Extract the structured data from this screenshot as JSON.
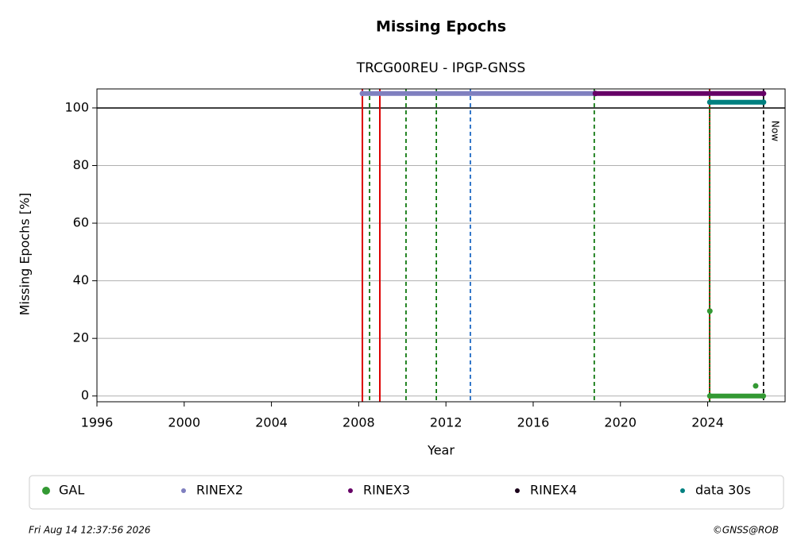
{
  "chart_data": {
    "type": "scatter",
    "title": "Missing Epochs",
    "subtitle": "TRCG00REU - IPGP-GNSS",
    "xlabel": "Year",
    "ylabel": "Missing Epochs [%]",
    "xlim": [
      1996,
      2027.55
    ],
    "ylim": [
      -2,
      106.6
    ],
    "xticks": [
      1996,
      2000,
      2004,
      2008,
      2012,
      2016,
      2020,
      2024
    ],
    "yticks": [
      0,
      20,
      40,
      60,
      80,
      100
    ],
    "grid": true,
    "series": [
      {
        "name": "GAL",
        "color": "#339933",
        "x": [
          2024.1,
          2026.2,
          2024.1,
          2026.55
        ],
        "values": [
          29.5,
          3.5,
          0,
          0
        ]
      },
      {
        "name": "RINEX2",
        "color": "#7f7fbf",
        "x": [
          2008.17,
          2018.8
        ],
        "values": [
          105,
          105
        ]
      },
      {
        "name": "RINEX3",
        "color": "#660066",
        "x": [
          2018.85,
          2026.56
        ],
        "values": [
          105,
          105
        ]
      },
      {
        "name": "RINEX4",
        "color": "#1a001a",
        "x": [],
        "values": []
      },
      {
        "name": "data 30s",
        "color": "#008080",
        "x": [
          2024.1,
          2026.56
        ],
        "values": [
          102,
          102
        ]
      }
    ],
    "hlines": [
      {
        "y": 100,
        "color": "#000000"
      }
    ],
    "vlines": [
      {
        "x": 2008.17,
        "color": "#007000",
        "style": "dashed"
      },
      {
        "x": 2008.17,
        "color": "#dd0000",
        "style": "solid"
      },
      {
        "x": 2008.5,
        "color": "#007000",
        "style": "dashed"
      },
      {
        "x": 2008.97,
        "color": "#dd0000",
        "style": "solid"
      },
      {
        "x": 2010.17,
        "color": "#007000",
        "style": "dashed"
      },
      {
        "x": 2011.56,
        "color": "#007000",
        "style": "dashed"
      },
      {
        "x": 2013.12,
        "color": "#1060c0",
        "style": "dashed"
      },
      {
        "x": 2018.8,
        "color": "#007000",
        "style": "dashed"
      },
      {
        "x": 2024.09,
        "color": "#007000",
        "style": "solid"
      },
      {
        "x": 2024.09,
        "color": "#dd0000",
        "style": "dotted"
      },
      {
        "x": 2026.56,
        "color": "#000000",
        "style": "dashed"
      }
    ],
    "annotation": "Now",
    "timestamp": "Fri Aug 14 12:37:56 2026",
    "credit": "©GNSS@ROB"
  }
}
